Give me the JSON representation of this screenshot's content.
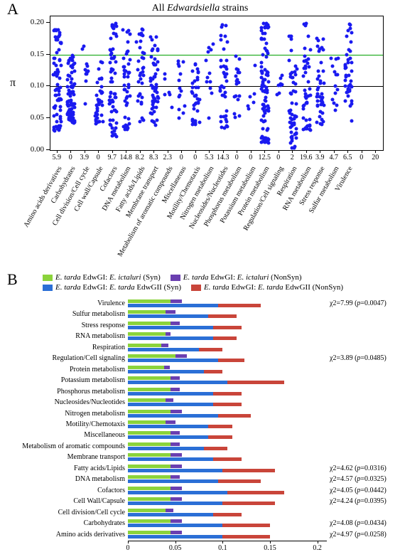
{
  "panelA": {
    "label": "A",
    "title_prefix": "All ",
    "title_italic": "Edwardsiella",
    "title_suffix": " strains",
    "ylabel": "π",
    "ylim": [
      0,
      0.21
    ],
    "yticks": [
      0.0,
      0.05,
      0.1,
      0.15,
      0.2
    ],
    "ytick_labels": [
      "0.00",
      "0.05",
      "0.10",
      "0.15",
      "0.20"
    ],
    "hlines": [
      {
        "y": 0.1,
        "color": "#000000"
      },
      {
        "y": 0.15,
        "color": "#00a000"
      }
    ],
    "point_color": "#1a1af0",
    "categories": [
      {
        "label": "Amino acids derivatives",
        "num": "5.9",
        "n": 70,
        "lo": 0.03,
        "hi": 0.19,
        "dense": true
      },
      {
        "label": "Carbohydrates",
        "num": "0",
        "n": 80,
        "lo": 0.04,
        "hi": 0.15,
        "dense": true
      },
      {
        "label": "Cell division/Cell cycle",
        "num": "3.9",
        "n": 12,
        "lo": 0.05,
        "hi": 0.17,
        "dense": false
      },
      {
        "label": "Cell wall/Capsule",
        "num": "0",
        "n": 40,
        "lo": 0.04,
        "hi": 0.14,
        "dense": true
      },
      {
        "label": "Cofactors",
        "num": "9.7",
        "n": 60,
        "lo": 0.02,
        "hi": 0.2,
        "dense": true
      },
      {
        "label": "DNA metabolism",
        "num": "14.8",
        "n": 45,
        "lo": 0.03,
        "hi": 0.19,
        "dense": true
      },
      {
        "label": "Fatty acids/Lipids",
        "num": "8.2",
        "n": 35,
        "lo": 0.04,
        "hi": 0.19,
        "dense": true
      },
      {
        "label": "Membrane transport",
        "num": "8.3",
        "n": 55,
        "lo": 0.03,
        "hi": 0.18,
        "dense": true
      },
      {
        "label": "Metabolism of aromatic compounds",
        "num": "2.3",
        "n": 6,
        "lo": 0.05,
        "hi": 0.14,
        "dense": false
      },
      {
        "label": "Miscellaneous",
        "num": "0",
        "n": 14,
        "lo": 0.05,
        "hi": 0.14,
        "dense": false
      },
      {
        "label": "Motility/Chemotaxis",
        "num": "0",
        "n": 38,
        "lo": 0.04,
        "hi": 0.14,
        "dense": true
      },
      {
        "label": "Nitrogen metabolism",
        "num": "5.3",
        "n": 12,
        "lo": 0.05,
        "hi": 0.17,
        "dense": false
      },
      {
        "label": "Nucleosides/Nucleotides",
        "num": "14.3",
        "n": 40,
        "lo": 0.03,
        "hi": 0.2,
        "dense": true
      },
      {
        "label": "Phosphorus metabolism",
        "num": "0",
        "n": 18,
        "lo": 0.05,
        "hi": 0.15,
        "dense": false
      },
      {
        "label": "Potassium metabolism",
        "num": "0",
        "n": 6,
        "lo": 0.06,
        "hi": 0.14,
        "dense": false
      },
      {
        "label": "Protein metabolism",
        "num": "12.5",
        "n": 90,
        "lo": 0.01,
        "hi": 0.2,
        "dense": true
      },
      {
        "label": "Regulation/Cell signaling",
        "num": "0",
        "n": 8,
        "lo": 0.06,
        "hi": 0.13,
        "dense": false
      },
      {
        "label": "Respiration",
        "num": "2",
        "n": 55,
        "lo": 0.0,
        "hi": 0.18,
        "dense": true
      },
      {
        "label": "RNA metabolism",
        "num": "19.6",
        "n": 45,
        "lo": 0.03,
        "hi": 0.2,
        "dense": true
      },
      {
        "label": "Stress response",
        "num": "3.9",
        "n": 40,
        "lo": 0.04,
        "hi": 0.18,
        "dense": true
      },
      {
        "label": "Sulfur metabolism",
        "num": "4.7",
        "n": 14,
        "lo": 0.04,
        "hi": 0.16,
        "dense": false
      },
      {
        "label": "Virulence",
        "num": "6.5",
        "n": 40,
        "lo": 0.04,
        "hi": 0.2,
        "dense": true
      },
      {
        "label": "",
        "num": "0",
        "n": 0,
        "lo": 0,
        "hi": 0,
        "dense": false
      },
      {
        "label": "",
        "num": "20",
        "n": 0,
        "lo": 0,
        "hi": 0,
        "dense": false
      }
    ]
  },
  "panelB": {
    "label": "B",
    "legend": [
      {
        "color": "#8bd33b",
        "label_prefix": "E. tarda ",
        "label_mid": "EdwGI: ",
        "label_italic2": "E. ictaluri",
        "label_suffix": " (Syn)"
      },
      {
        "color": "#6a3fb0",
        "label_prefix": "E. tarda ",
        "label_mid": "EdwGI: ",
        "label_italic2": "E. ictaluri",
        "label_suffix": " (NonSyn)"
      },
      {
        "color": "#2b6fd6",
        "label_prefix": "E. tarda ",
        "label_mid": "EdwGI: ",
        "label_italic2": "E. tarda",
        "label_suffix": " EdwGII (Syn)"
      },
      {
        "color": "#c9453a",
        "label_prefix": "E. tarda ",
        "label_mid": "EdwGI: ",
        "label_italic2": "E. tarda",
        "label_suffix": " EdwGII (NonSyn)"
      }
    ],
    "xlim": [
      0,
      0.21
    ],
    "xticks": [
      0,
      0.05,
      0.1,
      0.15,
      0.2
    ],
    "xtick_labels": [
      "0",
      "0.05",
      "0.1",
      "0.15",
      "0.2"
    ],
    "series_colors": {
      "syn1": "#8bd33b",
      "nonsyn1": "#6a3fb0",
      "syn2": "#2b6fd6",
      "nonsyn2": "#c9453a"
    },
    "categories": [
      {
        "label": "Virulence",
        "syn1": 0.045,
        "nonsyn1": 0.012,
        "syn2": 0.095,
        "nonsyn2": 0.045,
        "note": "χ2=7.99 (p=0.0047)"
      },
      {
        "label": "Sulfur metabolism",
        "syn1": 0.04,
        "nonsyn1": 0.01,
        "syn2": 0.085,
        "nonsyn2": 0.03,
        "note": ""
      },
      {
        "label": "Stress response",
        "syn1": 0.045,
        "nonsyn1": 0.01,
        "syn2": 0.09,
        "nonsyn2": 0.03,
        "note": ""
      },
      {
        "label": "RNA metabolism",
        "syn1": 0.04,
        "nonsyn1": 0.005,
        "syn2": 0.09,
        "nonsyn2": 0.025,
        "note": ""
      },
      {
        "label": "Respiration",
        "syn1": 0.035,
        "nonsyn1": 0.008,
        "syn2": 0.075,
        "nonsyn2": 0.025,
        "note": ""
      },
      {
        "label": "Regulation/Cell signaling",
        "syn1": 0.05,
        "nonsyn1": 0.012,
        "syn2": 0.095,
        "nonsyn2": 0.028,
        "note": "χ2=3.89 (p=0.0485)"
      },
      {
        "label": "Protein metabolism",
        "syn1": 0.038,
        "nonsyn1": 0.006,
        "syn2": 0.08,
        "nonsyn2": 0.02,
        "note": ""
      },
      {
        "label": "Potassium metabolism",
        "syn1": 0.045,
        "nonsyn1": 0.01,
        "syn2": 0.105,
        "nonsyn2": 0.06,
        "note": ""
      },
      {
        "label": "Phosphorus metabolism",
        "syn1": 0.045,
        "nonsyn1": 0.01,
        "syn2": 0.09,
        "nonsyn2": 0.03,
        "note": ""
      },
      {
        "label": "Nucleosides/Nucleotides",
        "syn1": 0.04,
        "nonsyn1": 0.008,
        "syn2": 0.09,
        "nonsyn2": 0.03,
        "note": ""
      },
      {
        "label": "Nitrogen metabolism",
        "syn1": 0.045,
        "nonsyn1": 0.012,
        "syn2": 0.095,
        "nonsyn2": 0.035,
        "note": ""
      },
      {
        "label": "Motility/Chemotaxis",
        "syn1": 0.04,
        "nonsyn1": 0.01,
        "syn2": 0.085,
        "nonsyn2": 0.025,
        "note": ""
      },
      {
        "label": "Miscellaneous",
        "syn1": 0.045,
        "nonsyn1": 0.01,
        "syn2": 0.085,
        "nonsyn2": 0.025,
        "note": ""
      },
      {
        "label": "Metabolism of aromatic compounds",
        "syn1": 0.045,
        "nonsyn1": 0.01,
        "syn2": 0.08,
        "nonsyn2": 0.025,
        "note": ""
      },
      {
        "label": "Membrane transport",
        "syn1": 0.045,
        "nonsyn1": 0.012,
        "syn2": 0.09,
        "nonsyn2": 0.03,
        "note": ""
      },
      {
        "label": "Fatty acids/Lipids",
        "syn1": 0.045,
        "nonsyn1": 0.012,
        "syn2": 0.1,
        "nonsyn2": 0.055,
        "note": "χ2=4.62 (p=0.0316)"
      },
      {
        "label": "DNA metabolism",
        "syn1": 0.045,
        "nonsyn1": 0.01,
        "syn2": 0.095,
        "nonsyn2": 0.045,
        "note": "χ2=4.57 (p=0.0325)"
      },
      {
        "label": "Cofactors",
        "syn1": 0.045,
        "nonsyn1": 0.012,
        "syn2": 0.105,
        "nonsyn2": 0.06,
        "note": "χ2=4.05 (p=0.0442)"
      },
      {
        "label": "Cell Wall/Capsule",
        "syn1": 0.045,
        "nonsyn1": 0.012,
        "syn2": 0.1,
        "nonsyn2": 0.055,
        "note": "χ2=4.24 (p=0.0395)"
      },
      {
        "label": "Cell division/Cell cycle",
        "syn1": 0.04,
        "nonsyn1": 0.008,
        "syn2": 0.09,
        "nonsyn2": 0.03,
        "note": ""
      },
      {
        "label": "Carbohydrates",
        "syn1": 0.045,
        "nonsyn1": 0.012,
        "syn2": 0.1,
        "nonsyn2": 0.05,
        "note": "χ2=4.08 (p=0.0434)"
      },
      {
        "label": "Amino acids derivatives",
        "syn1": 0.045,
        "nonsyn1": 0.012,
        "syn2": 0.1,
        "nonsyn2": 0.05,
        "note": "χ2=4.97 (p=0.0258)"
      }
    ]
  }
}
